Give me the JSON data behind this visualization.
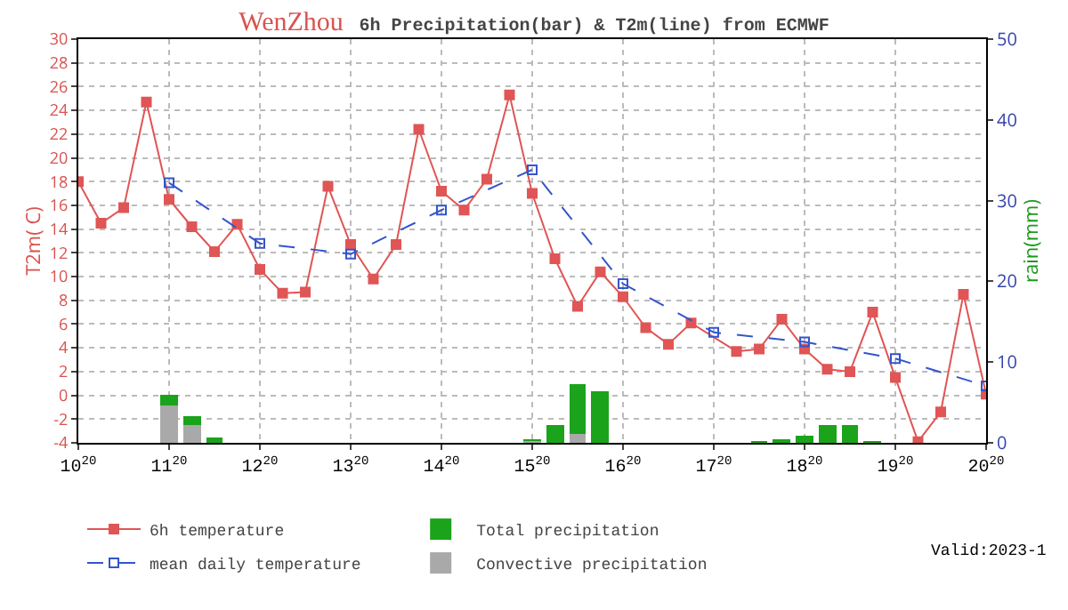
{
  "chart_data": {
    "type": "line",
    "title": "WenZhou",
    "subtitle": "6h Precipitation(bar) & T2m(line) from ECMWF",
    "ylabel": "T2m( C)",
    "y2label": "rain(mm)",
    "categories": [
      "10$^{20}$",
      null,
      null,
      null,
      "11$^{20}$",
      null,
      null,
      null,
      "12$^{20}$",
      null,
      null,
      null,
      "13$^{20}$",
      null,
      null,
      null,
      "14$^{20}$",
      null,
      null,
      null,
      "15$^{20}$",
      null,
      null,
      null,
      "16$^{20}$",
      null,
      null,
      null,
      "17$^{20}$",
      null,
      null,
      null,
      "18$^{20}$",
      null,
      null,
      null,
      "19$^{20}$",
      null,
      null,
      null,
      "20$^{20}$"
    ],
    "ylim": [
      -4,
      30
    ],
    "yticks": [
      -4,
      -2,
      0,
      2,
      4,
      6,
      8,
      10,
      12,
      14,
      16,
      18,
      20,
      22,
      24,
      26,
      28,
      30
    ],
    "y2lim": [
      0,
      50
    ],
    "y2ticks": [
      0,
      10,
      20,
      30,
      40,
      50
    ],
    "grid": true,
    "legend": "bottom",
    "annotations": [
      "Valid:2023-1"
    ],
    "series": [
      {
        "name": "6h temperature",
        "color": "#e05555",
        "marker": "square",
        "line_style": "solid",
        "values": [
          18,
          14.5,
          15.8,
          24.7,
          16.5,
          14.2,
          12.1,
          14.4,
          10.6,
          8.6,
          8.7,
          17.6,
          12.7,
          9.8,
          12.7,
          22.4,
          17.2,
          15.6,
          18.2,
          25.3,
          17.0,
          11.5,
          7.5,
          10.4,
          8.3,
          5.7,
          4.3,
          6.1,
          null,
          3.7,
          3.9,
          6.4,
          3.9,
          2.2,
          2.0,
          7.0,
          1.5,
          -3.9,
          -1.4,
          8.5,
          0.1
        ]
      },
      {
        "name": "Total precipitation",
        "type": "bar",
        "axis": "y2",
        "color": "#1ba31b",
        "values": [
          null,
          null,
          null,
          null,
          6.0,
          3.3,
          0.6,
          null,
          null,
          null,
          null,
          null,
          null,
          null,
          null,
          null,
          null,
          null,
          null,
          null,
          0.4,
          2.1,
          7.3,
          6.4,
          null,
          null,
          null,
          null,
          null,
          null,
          0.2,
          0.5,
          0.9,
          2.2,
          2.1,
          0.2,
          null,
          null,
          null,
          null,
          null
        ]
      },
      {
        "name": "mean daily temperature",
        "color": "#3355cc",
        "marker": "square-open",
        "line_style": "dashed",
        "values": [
          null,
          null,
          null,
          null,
          17.9,
          null,
          null,
          null,
          12.8,
          null,
          null,
          null,
          11.9,
          null,
          null,
          null,
          15.6,
          null,
          null,
          null,
          19.0,
          null,
          null,
          null,
          9.4,
          null,
          null,
          null,
          5.3,
          null,
          null,
          null,
          4.5,
          null,
          null,
          null,
          3.1,
          null,
          null,
          null,
          0.8
        ]
      },
      {
        "name": "Convective precipitation",
        "type": "bar",
        "axis": "y2",
        "color": "#a9a9a9",
        "values": [
          null,
          null,
          null,
          null,
          4.7,
          2.1,
          null,
          null,
          null,
          null,
          null,
          null,
          null,
          null,
          null,
          null,
          null,
          null,
          null,
          null,
          0.2,
          null,
          1.2,
          null,
          null,
          null,
          null,
          null,
          null,
          null,
          null,
          null,
          null,
          null,
          null,
          null,
          null,
          null,
          null,
          null,
          null
        ]
      }
    ]
  }
}
